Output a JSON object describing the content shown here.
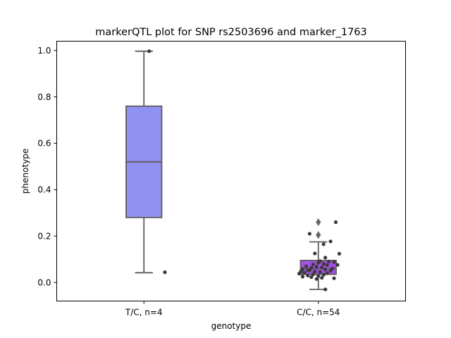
{
  "chart_data": {
    "type": "box",
    "title": "markerQTL plot for SNP rs2503696 and marker_1763",
    "xlabel": "genotype",
    "ylabel": "phenotype",
    "categories": [
      "T/C, n=4",
      "C/C, n=54"
    ],
    "ylim": [
      -0.08,
      1.04
    ],
    "yticks": [
      0.0,
      0.2,
      0.4,
      0.6,
      0.8,
      1.0
    ],
    "ytick_labels": [
      "0.0",
      "0.2",
      "0.4",
      "0.6",
      "0.8",
      "1.0"
    ],
    "grid": false,
    "colors": {
      "box_0": "#9191f2",
      "box_1": "#a64fe6",
      "box_edge": "#5e5e5e",
      "point": "#3a3a3a",
      "outlier": "#666666"
    },
    "boxes": [
      {
        "category": "T/C, n=4",
        "q1": 0.28,
        "median": 0.52,
        "q3": 0.76,
        "whisker_low": 0.042,
        "whisker_high": 0.997,
        "outliers": []
      },
      {
        "category": "C/C, n=54",
        "q1": 0.035,
        "median": 0.06,
        "q3": 0.095,
        "whisker_low": -0.03,
        "whisker_high": 0.175,
        "outliers": [
          0.26,
          0.205
        ]
      }
    ],
    "points": [
      {
        "category": "T/C, n=4",
        "jitter": 0.12,
        "y": 0.044
      },
      {
        "category": "T/C, n=4",
        "jitter": 0.03,
        "y": 0.997
      },
      {
        "category": "C/C, n=54",
        "jitter": -0.05,
        "y": 0.21
      },
      {
        "category": "C/C, n=54",
        "jitter": 0.1,
        "y": 0.26
      },
      {
        "category": "C/C, n=54",
        "jitter": 0.07,
        "y": 0.177
      },
      {
        "category": "C/C, n=54",
        "jitter": 0.03,
        "y": 0.165
      },
      {
        "category": "C/C, n=54",
        "jitter": -0.02,
        "y": 0.125
      },
      {
        "category": "C/C, n=54",
        "jitter": 0.12,
        "y": 0.124
      },
      {
        "category": "C/C, n=54",
        "jitter": 0.04,
        "y": 0.107
      },
      {
        "category": "C/C, n=54",
        "jitter": 0.01,
        "y": 0.092
      },
      {
        "category": "C/C, n=54",
        "jitter": 0.06,
        "y": 0.09
      },
      {
        "category": "C/C, n=54",
        "jitter": 0.09,
        "y": 0.088
      },
      {
        "category": "C/C, n=54",
        "jitter": 0.0,
        "y": 0.085
      },
      {
        "category": "C/C, n=54",
        "jitter": 0.03,
        "y": 0.08
      },
      {
        "category": "C/C, n=54",
        "jitter": -0.03,
        "y": 0.078
      },
      {
        "category": "C/C, n=54",
        "jitter": 0.11,
        "y": 0.076
      },
      {
        "category": "C/C, n=54",
        "jitter": 0.05,
        "y": 0.075
      },
      {
        "category": "C/C, n=54",
        "jitter": -0.07,
        "y": 0.07
      },
      {
        "category": "C/C, n=54",
        "jitter": -0.01,
        "y": 0.068
      },
      {
        "category": "C/C, n=54",
        "jitter": 0.02,
        "y": 0.065
      },
      {
        "category": "C/C, n=54",
        "jitter": -0.04,
        "y": 0.063
      },
      {
        "category": "C/C, n=54",
        "jitter": 0.08,
        "y": 0.06
      },
      {
        "category": "C/C, n=54",
        "jitter": -0.09,
        "y": 0.058
      },
      {
        "category": "C/C, n=54",
        "jitter": 0.04,
        "y": 0.056
      },
      {
        "category": "C/C, n=54",
        "jitter": -0.05,
        "y": 0.053
      },
      {
        "category": "C/C, n=54",
        "jitter": -0.06,
        "y": 0.052
      },
      {
        "category": "C/C, n=54",
        "jitter": 0.07,
        "y": 0.05
      },
      {
        "category": "C/C, n=54",
        "jitter": -0.1,
        "y": 0.048
      },
      {
        "category": "C/C, n=54",
        "jitter": -0.02,
        "y": 0.047
      },
      {
        "category": "C/C, n=54",
        "jitter": 0.01,
        "y": 0.045
      },
      {
        "category": "C/C, n=54",
        "jitter": -0.08,
        "y": 0.042
      },
      {
        "category": "C/C, n=54",
        "jitter": 0.05,
        "y": 0.04
      },
      {
        "category": "C/C, n=54",
        "jitter": -0.11,
        "y": 0.038
      },
      {
        "category": "C/C, n=54",
        "jitter": -0.03,
        "y": 0.035
      },
      {
        "category": "C/C, n=54",
        "jitter": 0.03,
        "y": 0.033
      },
      {
        "category": "C/C, n=54",
        "jitter": -0.06,
        "y": 0.03
      },
      {
        "category": "C/C, n=54",
        "jitter": 0.0,
        "y": 0.028
      },
      {
        "category": "C/C, n=54",
        "jitter": -0.09,
        "y": 0.025
      },
      {
        "category": "C/C, n=54",
        "jitter": -0.04,
        "y": 0.023
      },
      {
        "category": "C/C, n=54",
        "jitter": 0.02,
        "y": 0.02
      },
      {
        "category": "C/C, n=54",
        "jitter": 0.09,
        "y": 0.018
      },
      {
        "category": "C/C, n=54",
        "jitter": -0.01,
        "y": 0.015
      },
      {
        "category": "C/C, n=54",
        "jitter": 0.04,
        "y": -0.03
      }
    ]
  }
}
